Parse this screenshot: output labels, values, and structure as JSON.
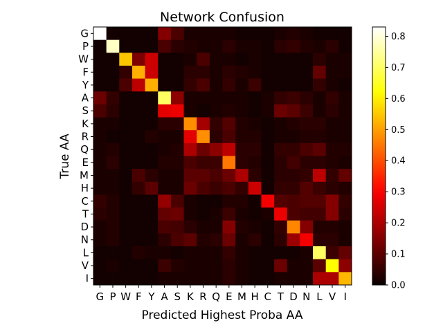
{
  "chart_data": {
    "type": "heatmap",
    "title": "Network Confusion",
    "xlabel": "Predicted Highest Proba AA",
    "ylabel": "True AA",
    "x_categories": [
      "G",
      "P",
      "W",
      "F",
      "Y",
      "A",
      "S",
      "K",
      "R",
      "Q",
      "E",
      "M",
      "H",
      "C",
      "T",
      "D",
      "N",
      "L",
      "V",
      "I"
    ],
    "y_categories": [
      "G",
      "P",
      "W",
      "F",
      "Y",
      "A",
      "S",
      "K",
      "R",
      "Q",
      "E",
      "M",
      "H",
      "C",
      "T",
      "D",
      "N",
      "L",
      "V",
      "I"
    ],
    "colormap": "hot",
    "vmin": 0.0,
    "vmax": 0.83,
    "colorbar_ticks": [
      0.0,
      0.1,
      0.2,
      0.3,
      0.4,
      0.5,
      0.6,
      0.7,
      0.8
    ],
    "values": [
      [
        0.83,
        0.01,
        0.01,
        0.01,
        0.01,
        0.15,
        0.08,
        0.02,
        0.02,
        0.02,
        0.02,
        0.01,
        0.01,
        0.01,
        0.02,
        0.03,
        0.02,
        0.01,
        0.01,
        0.01
      ],
      [
        0.01,
        0.78,
        0.01,
        0.01,
        0.01,
        0.08,
        0.04,
        0.03,
        0.02,
        0.02,
        0.04,
        0.02,
        0.02,
        0.01,
        0.04,
        0.05,
        0.03,
        0.02,
        0.04,
        0.01
      ],
      [
        0.01,
        0.01,
        0.55,
        0.14,
        0.24,
        0.01,
        0.01,
        0.02,
        0.08,
        0.02,
        0.02,
        0.01,
        0.02,
        0.01,
        0.01,
        0.01,
        0.01,
        0.04,
        0.02,
        0.02
      ],
      [
        0.01,
        0.01,
        0.05,
        0.52,
        0.24,
        0.01,
        0.01,
        0.04,
        0.04,
        0.02,
        0.04,
        0.03,
        0.02,
        0.01,
        0.01,
        0.01,
        0.01,
        0.11,
        0.02,
        0.02
      ],
      [
        0.01,
        0.01,
        0.08,
        0.22,
        0.52,
        0.01,
        0.01,
        0.05,
        0.08,
        0.02,
        0.05,
        0.02,
        0.06,
        0.01,
        0.01,
        0.01,
        0.01,
        0.05,
        0.02,
        0.01
      ],
      [
        0.12,
        0.05,
        0.01,
        0.01,
        0.01,
        0.7,
        0.16,
        0.02,
        0.02,
        0.02,
        0.02,
        0.02,
        0.01,
        0.02,
        0.05,
        0.06,
        0.04,
        0.02,
        0.05,
        0.02
      ],
      [
        0.08,
        0.04,
        0.01,
        0.01,
        0.01,
        0.27,
        0.28,
        0.02,
        0.01,
        0.02,
        0.03,
        0.02,
        0.01,
        0.02,
        0.12,
        0.1,
        0.06,
        0.02,
        0.04,
        0.02
      ],
      [
        0.02,
        0.02,
        0.01,
        0.01,
        0.01,
        0.04,
        0.04,
        0.48,
        0.19,
        0.05,
        0.09,
        0.03,
        0.02,
        0.01,
        0.02,
        0.03,
        0.04,
        0.04,
        0.02,
        0.02
      ],
      [
        0.02,
        0.01,
        0.01,
        0.01,
        0.03,
        0.02,
        0.02,
        0.27,
        0.48,
        0.04,
        0.08,
        0.03,
        0.03,
        0.01,
        0.02,
        0.02,
        0.03,
        0.03,
        0.02,
        0.02
      ],
      [
        0.02,
        0.03,
        0.01,
        0.01,
        0.01,
        0.02,
        0.03,
        0.2,
        0.12,
        0.16,
        0.22,
        0.04,
        0.04,
        0.01,
        0.05,
        0.05,
        0.08,
        0.1,
        0.03,
        0.03
      ],
      [
        0.02,
        0.04,
        0.01,
        0.01,
        0.01,
        0.03,
        0.03,
        0.08,
        0.06,
        0.06,
        0.45,
        0.04,
        0.03,
        0.01,
        0.04,
        0.07,
        0.04,
        0.04,
        0.03,
        0.02
      ],
      [
        0.02,
        0.02,
        0.01,
        0.08,
        0.04,
        0.02,
        0.02,
        0.1,
        0.1,
        0.08,
        0.12,
        0.2,
        0.04,
        0.01,
        0.04,
        0.04,
        0.05,
        0.22,
        0.05,
        0.11
      ],
      [
        0.02,
        0.02,
        0.01,
        0.05,
        0.1,
        0.02,
        0.02,
        0.12,
        0.08,
        0.06,
        0.08,
        0.05,
        0.24,
        0.01,
        0.05,
        0.05,
        0.09,
        0.06,
        0.04,
        0.03
      ],
      [
        0.05,
        0.03,
        0.01,
        0.01,
        0.01,
        0.17,
        0.08,
        0.02,
        0.01,
        0.01,
        0.03,
        0.03,
        0.01,
        0.29,
        0.09,
        0.08,
        0.09,
        0.09,
        0.15,
        0.05
      ],
      [
        0.04,
        0.03,
        0.01,
        0.01,
        0.01,
        0.11,
        0.12,
        0.02,
        0.01,
        0.02,
        0.06,
        0.02,
        0.01,
        0.02,
        0.28,
        0.08,
        0.07,
        0.07,
        0.15,
        0.04
      ],
      [
        0.02,
        0.03,
        0.01,
        0.01,
        0.01,
        0.08,
        0.07,
        0.04,
        0.02,
        0.02,
        0.15,
        0.03,
        0.02,
        0.01,
        0.05,
        0.47,
        0.15,
        0.03,
        0.03,
        0.02
      ],
      [
        0.02,
        0.03,
        0.01,
        0.01,
        0.01,
        0.04,
        0.08,
        0.1,
        0.03,
        0.04,
        0.12,
        0.02,
        0.04,
        0.01,
        0.04,
        0.18,
        0.29,
        0.04,
        0.04,
        0.02
      ],
      [
        0.01,
        0.01,
        0.01,
        0.03,
        0.02,
        0.02,
        0.01,
        0.02,
        0.02,
        0.02,
        0.05,
        0.02,
        0.01,
        0.01,
        0.01,
        0.01,
        0.02,
        0.7,
        0.06,
        0.11
      ],
      [
        0.01,
        0.02,
        0.01,
        0.01,
        0.01,
        0.06,
        0.03,
        0.02,
        0.02,
        0.02,
        0.04,
        0.02,
        0.01,
        0.01,
        0.12,
        0.02,
        0.02,
        0.1,
        0.62,
        0.16
      ],
      [
        0.01,
        0.01,
        0.01,
        0.01,
        0.01,
        0.02,
        0.02,
        0.02,
        0.02,
        0.02,
        0.04,
        0.02,
        0.01,
        0.01,
        0.02,
        0.02,
        0.02,
        0.2,
        0.2,
        0.53
      ]
    ]
  }
}
